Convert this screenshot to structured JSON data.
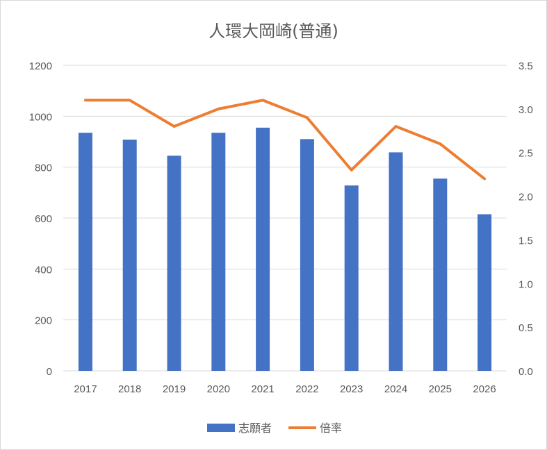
{
  "chart_data": {
    "type": "bar",
    "title": "人環大岡崎(普通)",
    "categories": [
      "2017",
      "2018",
      "2019",
      "2020",
      "2021",
      "2022",
      "2023",
      "2024",
      "2025",
      "2026"
    ],
    "series": [
      {
        "name": "志願者",
        "type": "bar",
        "axis": "left",
        "color": "#4472c4",
        "values": [
          935,
          908,
          845,
          935,
          955,
          910,
          728,
          858,
          755,
          615
        ]
      },
      {
        "name": "倍率",
        "type": "line",
        "axis": "right",
        "color": "#ed7d31",
        "values": [
          3.1,
          3.1,
          2.8,
          3.0,
          3.1,
          2.9,
          2.3,
          2.8,
          2.6,
          2.2
        ]
      }
    ],
    "y_left": {
      "min": 0,
      "max": 1200,
      "ticks": [
        0,
        200,
        400,
        600,
        800,
        1000,
        1200
      ]
    },
    "y_right": {
      "min": 0,
      "max": 3.5,
      "ticks": [
        "0.0",
        "0.5",
        "1.0",
        "1.5",
        "2.0",
        "2.5",
        "3.0",
        "3.5"
      ]
    },
    "grid": true,
    "legend_position": "bottom",
    "colors": {
      "gridline": "#d9d9d9",
      "axis_text": "#595959",
      "title": "#595959"
    }
  }
}
